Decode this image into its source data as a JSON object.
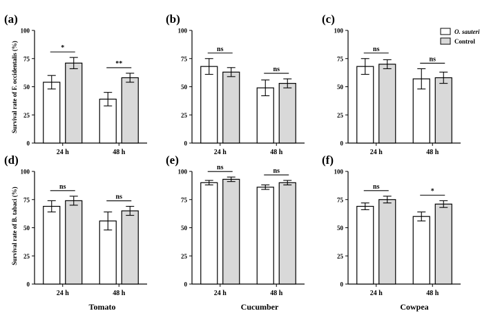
{
  "figure": {
    "ylabel_top": "Survival rate of F. occidentalis (%)",
    "ylabel_bottom": "Survival rate of B. tabaci (%)",
    "crop_labels": [
      "Tomato",
      "Cucumber",
      "Cowpea"
    ],
    "legend": {
      "series1": "O. sauteri",
      "series2": "Control"
    },
    "colors": {
      "series1": "#ffffff",
      "series2": "#d9d9d9",
      "stroke": "#000000"
    }
  },
  "chart_data": [
    {
      "panel": "(a)",
      "type": "bar",
      "categories": [
        "24 h",
        "48 h"
      ],
      "ylim": [
        0,
        100
      ],
      "yticks": [
        0,
        25,
        50,
        75,
        100
      ],
      "series": [
        {
          "name": "O. sauteri",
          "values": [
            54,
            39
          ],
          "errors": [
            6,
            6
          ]
        },
        {
          "name": "Control",
          "values": [
            71,
            58
          ],
          "errors": [
            5,
            4
          ]
        }
      ],
      "significance": [
        "*",
        "**"
      ]
    },
    {
      "panel": "(b)",
      "type": "bar",
      "categories": [
        "24 h",
        "48 h"
      ],
      "ylim": [
        0,
        100
      ],
      "yticks": [
        0,
        25,
        50,
        75,
        100
      ],
      "series": [
        {
          "name": "O. sauteri",
          "values": [
            68,
            49
          ],
          "errors": [
            7,
            7
          ]
        },
        {
          "name": "Control",
          "values": [
            63,
            53
          ],
          "errors": [
            4,
            4
          ]
        }
      ],
      "significance": [
        "ns",
        "ns"
      ]
    },
    {
      "panel": "(c)",
      "type": "bar",
      "categories": [
        "24 h",
        "48 h"
      ],
      "ylim": [
        0,
        100
      ],
      "yticks": [
        0,
        25,
        50,
        75,
        100
      ],
      "series": [
        {
          "name": "O. sauteri",
          "values": [
            68,
            57
          ],
          "errors": [
            7,
            9
          ]
        },
        {
          "name": "Control",
          "values": [
            70,
            58
          ],
          "errors": [
            4,
            5
          ]
        }
      ],
      "significance": [
        "ns",
        "ns"
      ]
    },
    {
      "panel": "(d)",
      "type": "bar",
      "categories": [
        "24 h",
        "48 h"
      ],
      "ylim": [
        0,
        100
      ],
      "yticks": [
        0,
        25,
        50,
        75,
        100
      ],
      "series": [
        {
          "name": "O. sauteri",
          "values": [
            69,
            56
          ],
          "errors": [
            5,
            8
          ]
        },
        {
          "name": "Control",
          "values": [
            74,
            65
          ],
          "errors": [
            4,
            4
          ]
        }
      ],
      "significance": [
        "ns",
        "ns"
      ]
    },
    {
      "panel": "(e)",
      "type": "bar",
      "categories": [
        "24 h",
        "48 h"
      ],
      "ylim": [
        0,
        100
      ],
      "yticks": [
        0,
        25,
        50,
        75,
        100
      ],
      "series": [
        {
          "name": "O. sauteri",
          "values": [
            90,
            86
          ],
          "errors": [
            2,
            2
          ]
        },
        {
          "name": "Control",
          "values": [
            93,
            90
          ],
          "errors": [
            2,
            2
          ]
        }
      ],
      "significance": [
        "ns",
        "ns"
      ]
    },
    {
      "panel": "(f)",
      "type": "bar",
      "categories": [
        "24 h",
        "48 h"
      ],
      "ylim": [
        0,
        100
      ],
      "yticks": [
        0,
        25,
        50,
        75,
        100
      ],
      "series": [
        {
          "name": "O. sauteri",
          "values": [
            69,
            60
          ],
          "errors": [
            3,
            4
          ]
        },
        {
          "name": "Control",
          "values": [
            75,
            71
          ],
          "errors": [
            3,
            3
          ]
        }
      ],
      "significance": [
        "ns",
        "*"
      ]
    }
  ]
}
